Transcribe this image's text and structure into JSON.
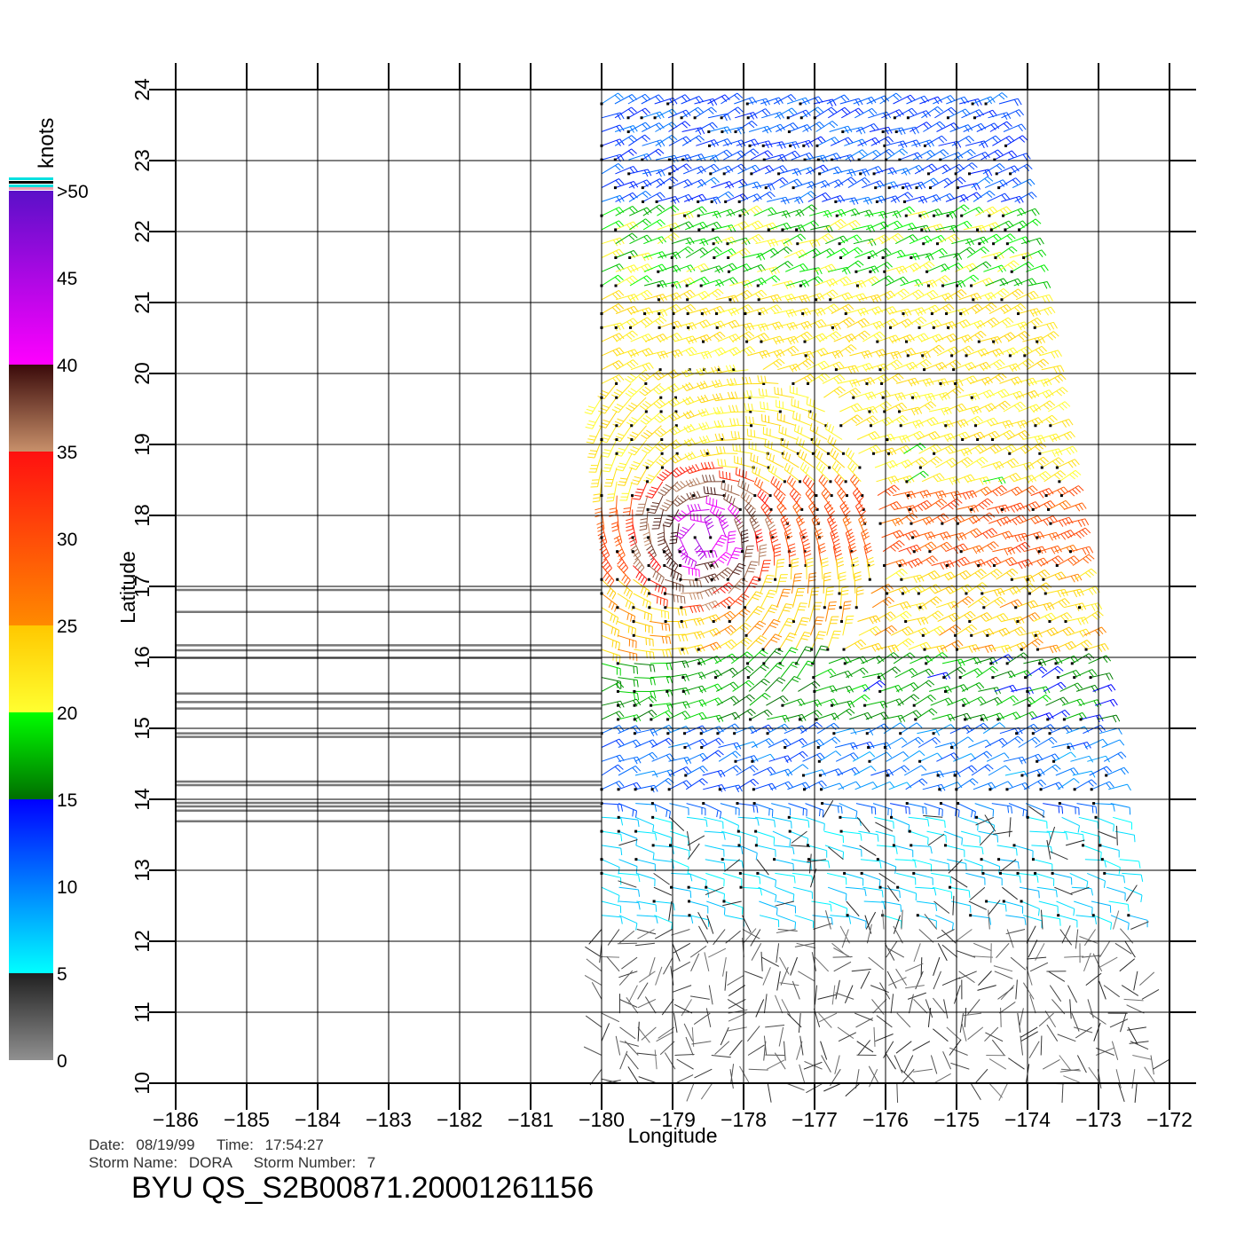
{
  "colorbar": {
    "unit_label": "knots",
    "tick_labels": [
      ">50",
      "45",
      "40",
      "35",
      "30",
      "25",
      "20",
      "15",
      "10",
      "5",
      "0"
    ],
    "segments": [
      {
        "from": 50,
        "to": 40,
        "top": "#5a10c8",
        "bottom": "#ff00ff"
      },
      {
        "from": 40,
        "to": 35,
        "top": "#3a0a0a",
        "bottom": "#c8906a"
      },
      {
        "from": 35,
        "to": 25,
        "top": "#ff1010",
        "bottom": "#ff8a00"
      },
      {
        "from": 25,
        "to": 20,
        "top": "#ffc800",
        "bottom": "#ffff30"
      },
      {
        "from": 20,
        "to": 15,
        "top": "#00ff00",
        "bottom": "#006e00"
      },
      {
        "from": 15,
        "to": 5,
        "top": "#0000ff",
        "bottom": "#00ffff"
      },
      {
        "from": 5,
        "to": 0,
        "top": "#202020",
        "bottom": "#909090"
      }
    ]
  },
  "chart_data": {
    "type": "wind-vector-map",
    "xlabel": "Longitude",
    "ylabel": "Latitude",
    "xlim": [
      -186,
      -172
    ],
    "ylim": [
      10,
      24
    ],
    "x_ticks": [
      -186,
      -185,
      -184,
      -183,
      -182,
      -181,
      -180,
      -179,
      -178,
      -177,
      -176,
      -175,
      -174,
      -173,
      -172
    ],
    "x_tick_labels": [
      "−186",
      "−185",
      "−184",
      "−183",
      "−182",
      "−181",
      "−180",
      "−179",
      "−178",
      "−177",
      "−176",
      "−175",
      "−174",
      "−173",
      "−172"
    ],
    "y_ticks": [
      10,
      11,
      12,
      13,
      14,
      15,
      16,
      17,
      18,
      19,
      20,
      21,
      22,
      23,
      24
    ],
    "y_tick_labels": [
      "10",
      "11",
      "12",
      "13",
      "14",
      "15",
      "16",
      "17",
      "18",
      "19",
      "20",
      "21",
      "22",
      "23",
      "24"
    ],
    "grid": true,
    "swath": {
      "corners": [
        [
          -180.0,
          23.8
        ],
        [
          -174.4,
          23.9
        ],
        [
          -172.2,
          10.0
        ],
        [
          -180.0,
          10.0
        ]
      ],
      "regions": [
        {
          "lat": [
            22.4,
            24.0
          ],
          "speed_knots": 12
        },
        {
          "lat": [
            21.2,
            22.4
          ],
          "speed_knots": 19
        },
        {
          "lat": [
            18.4,
            21.2
          ],
          "speed_knots": 22
        },
        {
          "lat": [
            17.2,
            18.4
          ],
          "speed_knots": 30
        },
        {
          "lat": [
            16.0,
            17.2
          ],
          "speed_knots": 24
        },
        {
          "lat": [
            15.0,
            16.0
          ],
          "speed_knots": 17
        },
        {
          "lat": [
            13.8,
            15.0
          ],
          "speed_knots": 11
        },
        {
          "lat": [
            12.2,
            13.8
          ],
          "speed_knots": 6
        },
        {
          "lat": [
            10.0,
            12.2
          ],
          "speed_knots": 3
        }
      ],
      "storm_center": [
        -178.6,
        17.7
      ]
    },
    "gray_tracks_lat": [
      16.95,
      16.64,
      16.17,
      16.1,
      15.99,
      15.49,
      15.37,
      15.28,
      14.93,
      14.88,
      14.25,
      14.2,
      13.95,
      13.9,
      13.84,
      13.69
    ],
    "gray_tracks_lon": [
      -186,
      -180
    ]
  },
  "footer": {
    "date_label": "Date:",
    "date": "08/19/99",
    "time_label": "Time:",
    "time": "17:54:27",
    "storm_name_label": "Storm Name:",
    "storm_name": "DORA",
    "storm_number_label": "Storm Number:",
    "storm_number": "7",
    "file_id": "BYU QS_S2B00871.20001261156"
  }
}
